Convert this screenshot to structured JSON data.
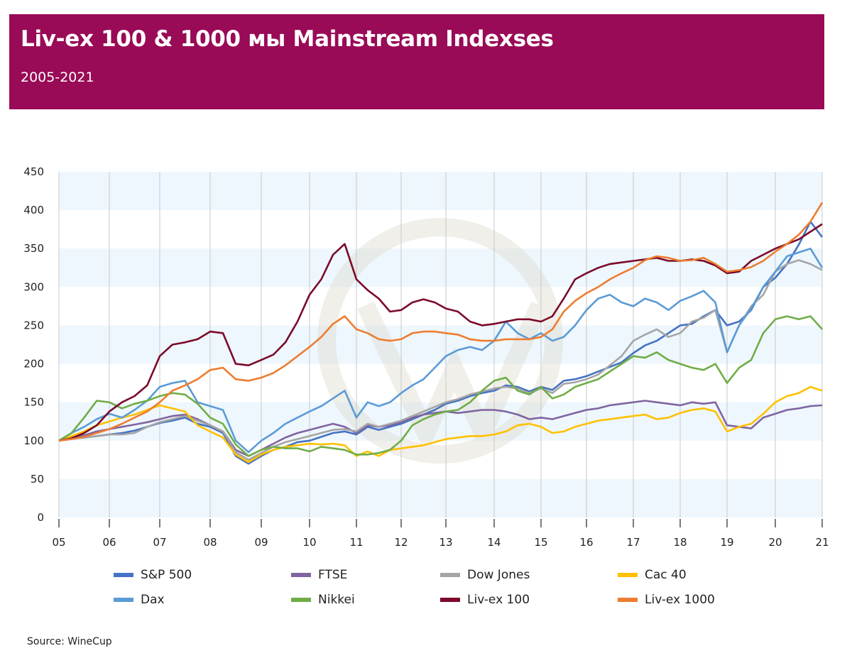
{
  "header": {
    "title": "Liv-ex 100 & 1000 мы Mainstream Indexses",
    "subtitle": "2005-2021"
  },
  "source": "Source: WineCup",
  "chart_data": {
    "type": "line",
    "title": "Liv-ex 100 & 1000 мы Mainstream Indexses",
    "subtitle": "2005-2021",
    "xlabel": "",
    "ylabel": "",
    "x_ticks": [
      "05",
      "06",
      "07",
      "08",
      "09",
      "10",
      "11",
      "12",
      "13",
      "14",
      "15",
      "16",
      "17",
      "18",
      "19",
      "20",
      "21"
    ],
    "y_ticks": [
      0,
      50,
      100,
      150,
      200,
      250,
      300,
      350,
      400,
      450
    ],
    "ylim": [
      0,
      450
    ],
    "xlim": [
      2005,
      2021
    ],
    "grid": "horizontal bands and vertical lines at years",
    "legend_position": "bottom",
    "x_step": "quarterly from 2005.0 to 2021.0",
    "series": [
      {
        "name": "S&P 500",
        "color": "#4472c4",
        "values": [
          100,
          103,
          104,
          106,
          108,
          110,
          113,
          118,
          123,
          126,
          130,
          122,
          118,
          110,
          80,
          70,
          80,
          88,
          92,
          98,
          100,
          105,
          110,
          112,
          108,
          118,
          114,
          118,
          122,
          128,
          134,
          140,
          148,
          152,
          158,
          162,
          165,
          172,
          170,
          164,
          170,
          166,
          178,
          180,
          184,
          190,
          196,
          202,
          214,
          224,
          230,
          240,
          250,
          252,
          262,
          270,
          250,
          255,
          270,
          300,
          312,
          330,
          355,
          385,
          365
        ]
      },
      {
        "name": "FTSE",
        "color": "#8064a2",
        "values": [
          100,
          104,
          107,
          112,
          115,
          118,
          121,
          124,
          128,
          132,
          134,
          128,
          120,
          112,
          88,
          80,
          88,
          96,
          104,
          110,
          114,
          118,
          122,
          118,
          110,
          120,
          118,
          120,
          124,
          130,
          134,
          136,
          138,
          136,
          138,
          140,
          140,
          138,
          134,
          128,
          130,
          128,
          132,
          136,
          140,
          142,
          146,
          148,
          150,
          152,
          150,
          148,
          146,
          150,
          148,
          150,
          120,
          118,
          116,
          130,
          135,
          140,
          142,
          145,
          146
        ]
      },
      {
        "name": "Dow Jones",
        "color": "#a5a5a5",
        "values": [
          100,
          102,
          104,
          106,
          108,
          108,
          110,
          118,
          124,
          128,
          132,
          126,
          120,
          112,
          85,
          75,
          84,
          92,
          98,
          102,
          106,
          110,
          114,
          115,
          112,
          122,
          118,
          122,
          126,
          132,
          138,
          144,
          150,
          154,
          160,
          164,
          168,
          170,
          168,
          162,
          168,
          162,
          174,
          176,
          180,
          186,
          198,
          210,
          230,
          238,
          245,
          235,
          240,
          255,
          260,
          270,
          215,
          250,
          275,
          290,
          320,
          330,
          335,
          330,
          322
        ]
      },
      {
        "name": "Cac 40",
        "color": "#ffc000",
        "values": [
          100,
          106,
          112,
          120,
          125,
          130,
          134,
          140,
          146,
          142,
          138,
          120,
          112,
          104,
          82,
          72,
          82,
          88,
          92,
          94,
          96,
          95,
          96,
          94,
          80,
          86,
          80,
          88,
          90,
          92,
          94,
          98,
          102,
          104,
          106,
          106,
          108,
          112,
          120,
          122,
          118,
          110,
          112,
          118,
          122,
          126,
          128,
          130,
          132,
          134,
          128,
          130,
          136,
          140,
          142,
          138,
          112,
          118,
          122,
          135,
          150,
          158,
          162,
          170,
          165
        ]
      },
      {
        "name": "Dax",
        "color": "#5b9bd5",
        "values": [
          100,
          110,
          118,
          128,
          135,
          130,
          140,
          152,
          170,
          175,
          178,
          150,
          145,
          140,
          100,
          85,
          100,
          110,
          122,
          130,
          138,
          145,
          155,
          165,
          130,
          150,
          145,
          150,
          162,
          172,
          180,
          195,
          210,
          218,
          222,
          218,
          230,
          255,
          240,
          232,
          240,
          230,
          235,
          250,
          270,
          285,
          290,
          280,
          275,
          285,
          280,
          270,
          282,
          288,
          295,
          280,
          215,
          250,
          272,
          300,
          320,
          340,
          345,
          350,
          325
        ]
      },
      {
        "name": "Nikkei",
        "color": "#70ad47",
        "values": [
          100,
          110,
          130,
          152,
          150,
          142,
          148,
          152,
          158,
          162,
          160,
          148,
          130,
          122,
          95,
          80,
          88,
          92,
          90,
          90,
          86,
          92,
          90,
          88,
          82,
          82,
          84,
          88,
          100,
          120,
          128,
          134,
          138,
          140,
          150,
          165,
          178,
          182,
          165,
          160,
          170,
          155,
          160,
          170,
          175,
          180,
          190,
          200,
          210,
          208,
          215,
          205,
          200,
          195,
          192,
          200,
          175,
          195,
          205,
          240,
          258,
          262,
          258,
          262,
          245
        ]
      },
      {
        "name": "Liv-ex 100",
        "color": "#7b0a2a",
        "values": [
          100,
          103,
          110,
          120,
          138,
          150,
          158,
          172,
          210,
          225,
          228,
          232,
          242,
          240,
          200,
          198,
          205,
          212,
          228,
          255,
          290,
          310,
          342,
          356,
          310,
          296,
          285,
          268,
          270,
          280,
          284,
          280,
          272,
          268,
          255,
          250,
          252,
          255,
          258,
          258,
          255,
          262,
          285,
          310,
          318,
          325,
          330,
          332,
          334,
          336,
          338,
          334,
          334,
          336,
          334,
          328,
          318,
          320,
          334,
          342,
          350,
          356,
          362,
          372,
          382
        ]
      },
      {
        "name": "Liv-ex 1000",
        "color": "#ed7d31",
        "values": [
          100,
          102,
          105,
          110,
          115,
          122,
          130,
          138,
          150,
          165,
          172,
          180,
          192,
          195,
          180,
          178,
          182,
          188,
          198,
          210,
          222,
          235,
          252,
          262,
          245,
          240,
          232,
          230,
          232,
          240,
          242,
          242,
          240,
          238,
          232,
          230,
          230,
          232,
          232,
          232,
          235,
          245,
          268,
          282,
          292,
          300,
          310,
          318,
          325,
          335,
          340,
          338,
          334,
          335,
          338,
          330,
          320,
          322,
          326,
          334,
          346,
          356,
          368,
          385,
          410
        ]
      }
    ]
  }
}
